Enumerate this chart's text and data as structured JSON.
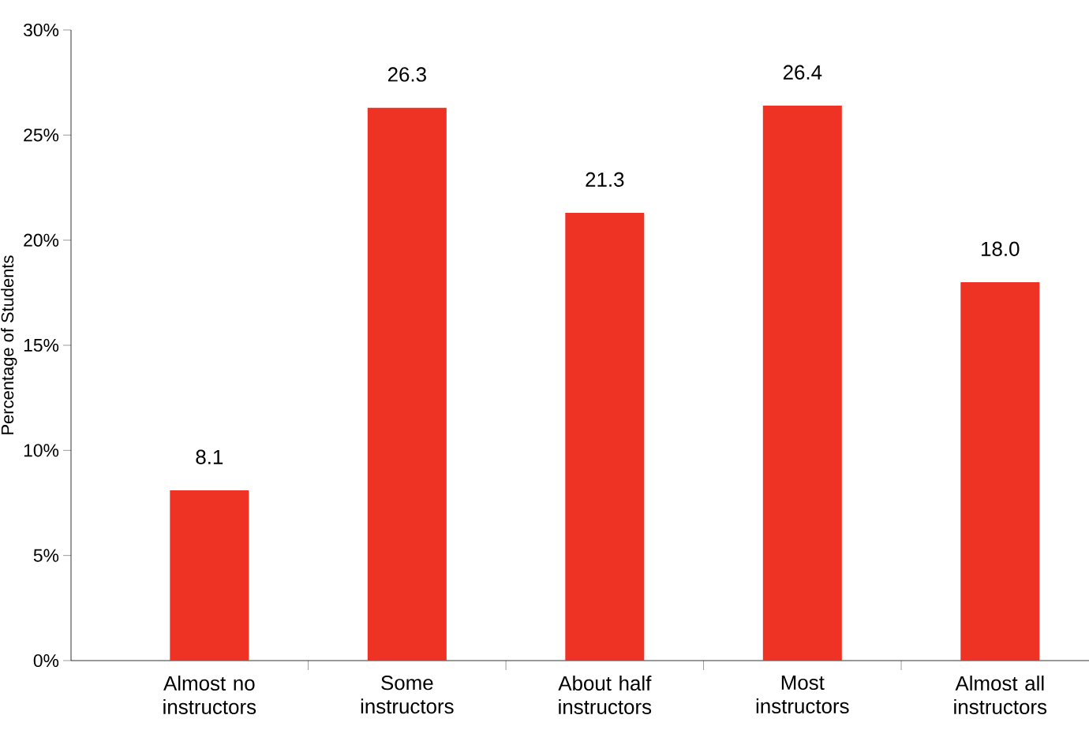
{
  "chart_data": {
    "type": "bar",
    "ylabel": "Percentage of Students",
    "categories": [
      "Almost no instructors",
      "Some instructors",
      "About half instructors",
      "Most instructors",
      "Almost all instructors"
    ],
    "values": [
      8.1,
      26.3,
      21.3,
      26.4,
      18.0
    ],
    "value_labels": [
      "8.1",
      "26.3",
      "21.3",
      "26.4",
      "18.0"
    ],
    "color": "#ee3224",
    "ylim": [
      0,
      30
    ],
    "yticks": [
      {
        "value": 0,
        "label": "0%"
      },
      {
        "value": 5,
        "label": "5%"
      },
      {
        "value": 10,
        "label": "10%"
      },
      {
        "value": 15,
        "label": "15%"
      },
      {
        "value": 20,
        "label": "20%"
      },
      {
        "value": 25,
        "label": "25%"
      },
      {
        "value": 30,
        "label": "30%"
      }
    ],
    "grid": false
  }
}
